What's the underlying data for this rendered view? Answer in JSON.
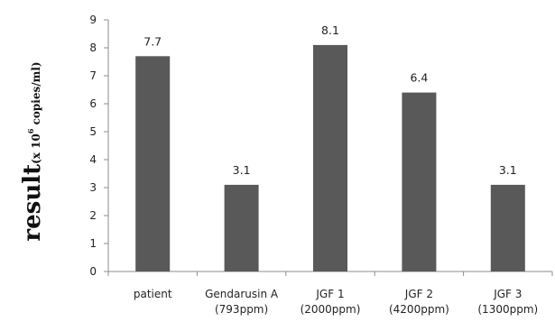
{
  "chart_data": {
    "type": "bar",
    "categories": [
      [
        "patient"
      ],
      [
        "Gendarusin A",
        "(793ppm)"
      ],
      [
        "JGF 1",
        "(2000ppm)"
      ],
      [
        "JGF 2",
        "(4200ppm)"
      ],
      [
        "JGF 3",
        "(1300ppm)"
      ]
    ],
    "values": [
      7.7,
      3.1,
      8.1,
      6.4,
      3.1
    ],
    "data_labels": [
      "7.7",
      "3.1",
      "8.1",
      "6.4",
      "3.1"
    ],
    "ylabel": {
      "main": "result",
      "sub_prefix": "(x 10",
      "sup": "6",
      "sub_suffix": " copies/ml)"
    },
    "ylim": [
      0,
      9
    ],
    "yticks": [
      "0",
      "1",
      "2",
      "3",
      "4",
      "5",
      "6",
      "7",
      "8",
      "9"
    ],
    "grid": false,
    "legend": "none",
    "colors": {
      "bar": "#595959",
      "axis": "#8c8c8c"
    }
  }
}
